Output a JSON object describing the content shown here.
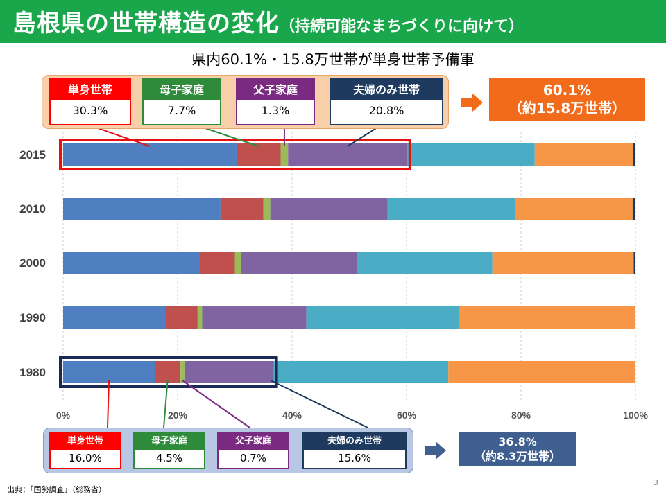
{
  "header": {
    "title": "島根県の世帯構造の変化",
    "subtitle": "（持続可能なまちづくりに向けて）"
  },
  "slide_subtitle": "県内60.1%・15.8万世帯が単身世帯予備軍",
  "top_panel": {
    "boxes": [
      {
        "label": "単身世帯",
        "value": "30.3%",
        "color": "#ff0000"
      },
      {
        "label": "母子家庭",
        "value": "7.7%",
        "color": "#2e8b3a"
      },
      {
        "label": "父子家庭",
        "value": "1.3%",
        "color": "#7b2a82"
      },
      {
        "label": "夫婦のみ世帯",
        "value": "20.8%",
        "color": "#1f3a5f"
      }
    ],
    "callout_line1": "60.1%",
    "callout_line2": "（約15.8万世帯）"
  },
  "bottom_panel": {
    "boxes": [
      {
        "label": "単身世帯",
        "value": "16.0%",
        "color": "#ff0000"
      },
      {
        "label": "母子家庭",
        "value": "4.5%",
        "color": "#2e8b3a"
      },
      {
        "label": "父子家庭",
        "value": "0.7%",
        "color": "#7b2a82"
      },
      {
        "label": "夫婦のみ世帯",
        "value": "15.6%",
        "color": "#1f3a5f"
      }
    ],
    "callout_line1": "36.8%",
    "callout_line2": "（約8.3万世帯）"
  },
  "source": "出典：「国勢調査」（総務省）",
  "page_number": "3",
  "chart_data": {
    "type": "bar",
    "orientation": "horizontal",
    "stacked": true,
    "categories": [
      "2015",
      "2010",
      "2000",
      "1990",
      "1980"
    ],
    "series": [
      {
        "color": "#4f7fc0",
        "values": [
          30.3,
          27.5,
          24.0,
          18.0,
          16.0
        ]
      },
      {
        "color": "#c0504d",
        "values": [
          7.7,
          7.5,
          6.0,
          5.5,
          4.5
        ]
      },
      {
        "color": "#9bbb59",
        "values": [
          1.3,
          1.2,
          1.1,
          0.8,
          0.7
        ]
      },
      {
        "color": "#8064a2",
        "values": [
          20.8,
          20.5,
          20.2,
          18.2,
          15.6
        ]
      },
      {
        "color": "#4bacc6",
        "values": [
          22.3,
          22.3,
          23.7,
          26.8,
          30.5
        ]
      },
      {
        "color": "#f79646",
        "values": [
          17.2,
          20.5,
          24.7,
          30.7,
          32.7
        ]
      },
      {
        "color": "#1f3a5f",
        "values": [
          0.4,
          0.5,
          0.3,
          0.0,
          0.0
        ]
      }
    ],
    "xlim": [
      0,
      100
    ],
    "xticks": [
      "0%",
      "20%",
      "40%",
      "60%",
      "80%",
      "100%"
    ],
    "grid": true,
    "highlight": [
      {
        "category": "2015",
        "cumulative_value": 60.1,
        "color": "#e81010"
      },
      {
        "category": "1980",
        "cumulative_value": 36.8,
        "color": "#1a2a55"
      }
    ]
  }
}
